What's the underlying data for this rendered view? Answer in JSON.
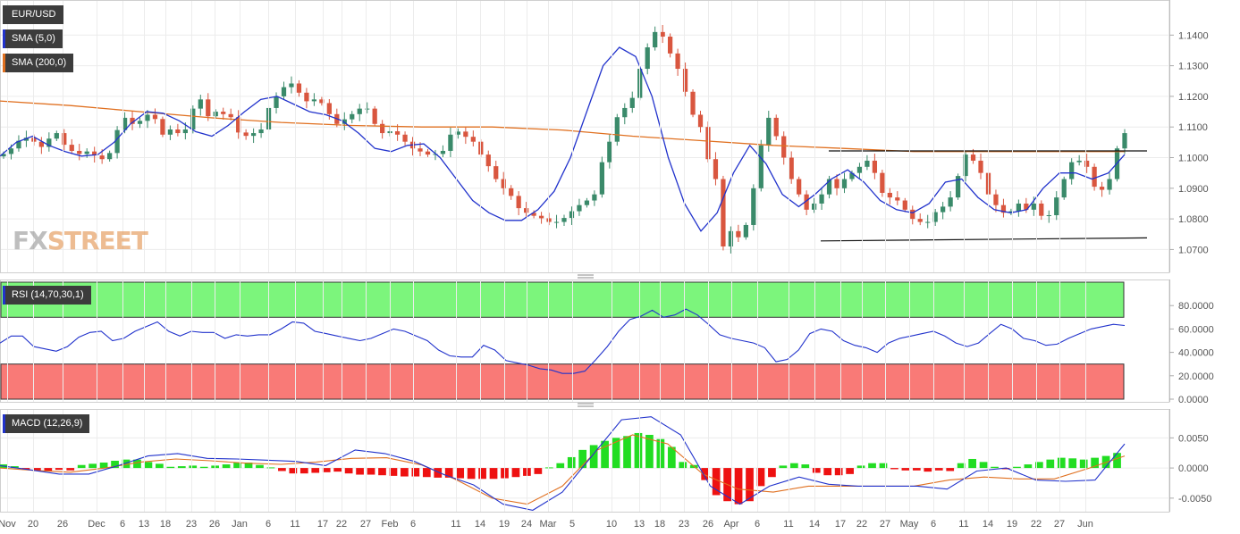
{
  "chart_data": [
    {
      "type": "candlestick",
      "panel": "price",
      "legend": [
        {
          "label": "EUR/USD",
          "color": "#3c3c3c"
        },
        {
          "label": "SMA (5,0)",
          "color": "#2233cc"
        },
        {
          "label": "SMA (200,0)",
          "color": "#e07020"
        }
      ],
      "y_ticks": [
        "1.0700",
        "1.0800",
        "1.0900",
        "1.1000",
        "1.1100",
        "1.1200",
        "1.1300",
        "1.1400"
      ],
      "ylim": [
        1.064,
        1.15
      ],
      "x_ticks": [
        "Nov",
        "20",
        "26",
        "Dec",
        "6",
        "13",
        "18",
        "23",
        "26",
        "Jan",
        "6",
        "11",
        "17",
        "22",
        "27",
        "Feb",
        "6",
        "11",
        "14",
        "19",
        "24",
        "Mar",
        "5",
        "10",
        "13",
        "18",
        "23",
        "26",
        "Apr",
        "6",
        "11",
        "14",
        "17",
        "22",
        "27",
        "May",
        "6",
        "11",
        "14",
        "19",
        "22",
        "27",
        "Jun"
      ],
      "candle_closes": [
        1.1012,
        1.103,
        1.1055,
        1.1065,
        1.1052,
        1.1035,
        1.1062,
        1.108,
        1.1042,
        1.1022,
        1.1012,
        1.102,
        1.1007,
        1.0995,
        1.1015,
        1.109,
        1.113,
        1.111,
        1.112,
        1.114,
        1.1126,
        1.1075,
        1.1092,
        1.108,
        1.1092,
        1.116,
        1.119,
        1.1135,
        1.115,
        1.1142,
        1.1132,
        1.1082,
        1.1071,
        1.108,
        1.1092,
        1.1162,
        1.12,
        1.123,
        1.1242,
        1.1212,
        1.1184,
        1.119,
        1.1178,
        1.1142,
        1.111,
        1.1125,
        1.1142,
        1.116,
        1.116,
        1.111,
        1.108,
        1.1086,
        1.1075,
        1.1052,
        1.103,
        1.102,
        1.101,
        1.1012,
        1.1022,
        1.1075,
        1.1085,
        1.1068,
        1.1052,
        1.101,
        1.0972,
        1.093,
        1.09,
        1.0875,
        1.0835,
        1.082,
        1.081,
        1.0802,
        1.079,
        1.079,
        1.0803,
        1.0825,
        1.0845,
        1.086,
        1.088,
        1.0985,
        1.1052,
        1.1132,
        1.1162,
        1.1195,
        1.129,
        1.136,
        1.141,
        1.1395,
        1.134,
        1.129,
        1.1215,
        1.114,
        1.11,
        1.0995,
        1.093,
        1.071,
        1.076,
        1.074,
        1.078,
        1.09,
        1.104,
        1.113,
        1.107,
        1.1,
        1.093,
        1.088,
        1.083,
        1.085,
        1.088,
        1.093,
        1.09,
        1.093,
        1.095,
        1.097,
        1.099,
        1.095,
        1.0885,
        1.087,
        1.086,
        1.083,
        1.08,
        1.079,
        1.079,
        1.0822,
        1.084,
        1.087,
        1.094,
        1.101,
        1.099,
        1.095,
        1.088,
        1.0845,
        1.082,
        1.0825,
        1.085,
        1.083,
        1.085,
        1.081,
        1.0812,
        1.087,
        1.093,
        1.0985,
        1.099,
        1.097,
        1.0905,
        1.0895,
        1.093,
        1.103,
        1.108
      ],
      "sma5_samples": [
        1.1005,
        1.105,
        1.107,
        1.104,
        1.102,
        1.1005,
        1.101,
        1.105,
        1.111,
        1.115,
        1.1145,
        1.112,
        1.1085,
        1.107,
        1.1105,
        1.115,
        1.119,
        1.12,
        1.1175,
        1.115,
        1.114,
        1.112,
        1.108,
        1.103,
        1.102,
        1.104,
        1.1045,
        1.1,
        1.093,
        1.086,
        1.082,
        1.0795,
        1.0795,
        1.083,
        1.089,
        1.1,
        1.115,
        1.13,
        1.136,
        1.133,
        1.12,
        1.1,
        1.085,
        1.076,
        1.082,
        1.095,
        1.104,
        1.098,
        1.088,
        1.084,
        1.088,
        1.093,
        1.096,
        1.092,
        1.086,
        1.083,
        1.082,
        1.085,
        1.092,
        1.093,
        1.087,
        1.083,
        1.082,
        1.083,
        1.09,
        1.095,
        1.095,
        1.093,
        1.095,
        1.101
      ],
      "sma200_samples": [
        1.1185,
        1.117,
        1.115,
        1.113,
        1.1115,
        1.1105,
        1.11,
        1.11,
        1.109,
        1.107,
        1.1055,
        1.104,
        1.103,
        1.102,
        1.102,
        1.102,
        1.102
      ],
      "trendlines": [
        {
          "from": [
            "Apr 8",
            1.1022
          ],
          "to": [
            "Jun 1",
            1.1022
          ]
        },
        {
          "from": [
            "Apr 6",
            1.0728
          ],
          "to": [
            "Jun 2",
            1.0738
          ]
        }
      ],
      "watermark": "FXSTREET"
    },
    {
      "type": "line",
      "panel": "rsi",
      "legend": [
        {
          "label": "RSI (14,70,30,1)",
          "color": "#2233cc"
        }
      ],
      "y_ticks": [
        "0.0000",
        "20.0000",
        "40.0000",
        "60.0000",
        "80.0000"
      ],
      "ylim": [
        0,
        100
      ],
      "overbought": 70,
      "oversold": 30,
      "values": [
        48,
        54,
        54,
        45,
        43,
        41,
        45,
        53,
        57,
        58,
        50,
        52,
        58,
        62,
        66,
        58,
        54,
        58,
        57,
        57,
        52,
        55,
        54,
        55,
        55,
        60,
        66,
        65,
        58,
        56,
        54,
        52,
        50,
        52,
        56,
        60,
        58,
        54,
        50,
        42,
        37,
        36,
        36,
        46,
        42,
        33,
        31,
        29,
        26,
        25,
        22,
        22,
        24,
        34,
        45,
        58,
        68,
        71,
        76,
        70,
        72,
        77,
        72,
        64,
        55,
        52,
        50,
        48,
        44,
        32,
        34,
        42,
        56,
        60,
        58,
        50,
        46,
        44,
        40,
        48,
        52,
        54,
        56,
        58,
        54,
        48,
        45,
        48,
        56,
        64,
        60,
        52,
        50,
        46,
        47,
        52,
        56,
        60,
        62,
        64,
        63
      ]
    },
    {
      "type": "bar+line",
      "panel": "macd",
      "legend": [
        {
          "label": "MACD (12,26,9)",
          "color": "#2233cc"
        }
      ],
      "y_ticks": [
        "-0.0050",
        "0.0000",
        "0.0050"
      ],
      "ylim": [
        -0.0068,
        0.0092
      ],
      "histogram": [
        0.0006,
        0.0003,
        -0.0003,
        -0.0005,
        -0.0005,
        -0.0003,
        -0.0004,
        0.0005,
        0.0007,
        0.0009,
        0.0012,
        0.0014,
        0.0014,
        0.001,
        0.0007,
        0.0002,
        0.0003,
        0.0004,
        0.0002,
        0.0004,
        0.0006,
        0.0009,
        0.0009,
        0.0005,
        0.0001,
        -0.0005,
        -0.0009,
        -0.0009,
        -0.0008,
        -0.0007,
        -0.0006,
        -0.0009,
        -0.0011,
        -0.0011,
        -0.0012,
        -0.0013,
        -0.0014,
        -0.0014,
        -0.0015,
        -0.0016,
        -0.0016,
        -0.0017,
        -0.0018,
        -0.0018,
        -0.0018,
        -0.0017,
        -0.0015,
        -0.0013,
        -0.001,
        0.0001,
        0.0008,
        0.0018,
        0.003,
        0.0038,
        0.0045,
        0.005,
        0.0053,
        0.0058,
        0.0055,
        0.0048,
        0.0035,
        0.001,
        0.0005,
        -0.002,
        -0.0045,
        -0.0055,
        -0.006,
        -0.0055,
        -0.003,
        -0.0015,
        0.0004,
        0.0008,
        0.0006,
        -0.0008,
        -0.0012,
        -0.0012,
        -0.001,
        0.0004,
        0.0008,
        0.0008,
        -0.0002,
        -0.0004,
        -0.0004,
        -0.0006,
        -0.0004,
        -0.0005,
        0.0008,
        0.0015,
        0.001,
        0.0002,
        -0.0002,
        0.0002,
        0.0006,
        0.001,
        0.0014,
        0.0017,
        0.0016,
        0.0014,
        0.0017,
        0.002,
        0.0025
      ],
      "macd_line": [
        0.0004,
        -0.0003,
        -0.001,
        -0.001,
        0.0004,
        0.002,
        0.0024,
        0.0016,
        0.0015,
        0.0013,
        0.0011,
        0.0004,
        0.003,
        0.0024,
        0.0011,
        -0.0011,
        -0.0028,
        -0.006,
        -0.007,
        -0.004,
        0.002,
        0.008,
        0.0085,
        0.0055,
        -0.003,
        -0.006,
        -0.003,
        -0.0015,
        -0.0027,
        -0.003,
        -0.003,
        -0.003,
        -0.0035,
        -0.0005,
        0.0,
        -0.002,
        -0.0022,
        -0.002,
        0.004
      ],
      "signal_line": [
        0.0,
        -0.0004,
        -0.0007,
        0.0,
        0.001,
        0.0015,
        0.0012,
        0.0008,
        0.0006,
        0.001,
        0.0016,
        0.0017,
        0.0005,
        -0.002,
        -0.005,
        -0.006,
        -0.003,
        0.003,
        0.0055,
        0.004,
        -0.001,
        -0.0035,
        -0.004,
        -0.003,
        -0.003,
        -0.003,
        -0.003,
        -0.002,
        -0.0015,
        -0.0018,
        -0.0018,
        0.0,
        0.002
      ]
    }
  ]
}
